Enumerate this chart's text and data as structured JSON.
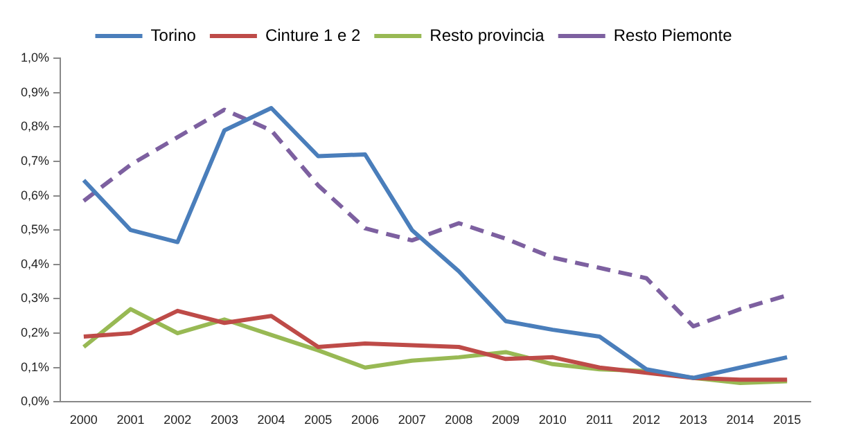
{
  "chart_data": {
    "type": "line",
    "categories": [
      "2000",
      "2001",
      "2002",
      "2003",
      "2004",
      "2005",
      "2006",
      "2007",
      "2008",
      "2009",
      "2010",
      "2011",
      "2012",
      "2013",
      "2014",
      "2015"
    ],
    "series": [
      {
        "name": "Torino",
        "color": "#4a7ebb",
        "values": [
          0.645,
          0.5,
          0.465,
          0.79,
          0.855,
          0.715,
          0.72,
          0.5,
          0.38,
          0.235,
          0.21,
          0.19,
          0.095,
          0.07,
          0.1,
          0.13
        ]
      },
      {
        "name": "Cinture 1 e 2",
        "color": "#be4b48",
        "values": [
          0.19,
          0.2,
          0.265,
          0.23,
          0.25,
          0.16,
          0.17,
          0.165,
          0.16,
          0.125,
          0.13,
          0.1,
          0.085,
          0.07,
          0.065,
          0.065
        ]
      },
      {
        "name": "Resto provincia",
        "color": "#98b954",
        "values": [
          0.16,
          0.27,
          0.2,
          0.24,
          0.195,
          0.15,
          0.1,
          0.12,
          0.13,
          0.145,
          0.11,
          0.095,
          0.09,
          0.07,
          0.055,
          0.06
        ]
      },
      {
        "name": "Resto Piemonte",
        "color": "#7d60a0",
        "line_style": "dashed",
        "values": [
          0.585,
          0.69,
          0.77,
          0.85,
          0.79,
          0.63,
          0.505,
          0.47,
          0.52,
          0.475,
          0.42,
          0.39,
          0.36,
          0.22,
          0.27,
          0.31
        ]
      }
    ],
    "ylim": [
      0,
      1
    ],
    "yticks": [
      {
        "value": 0,
        "label": "0,0%"
      },
      {
        "value": 0.1,
        "label": "0,1%"
      },
      {
        "value": 0.2,
        "label": "0,2%"
      },
      {
        "value": 0.3,
        "label": "0,3%"
      },
      {
        "value": 0.4,
        "label": "0,4%"
      },
      {
        "value": 0.5,
        "label": "0,5%"
      },
      {
        "value": 0.6,
        "label": "0,6%"
      },
      {
        "value": 0.7,
        "label": "0,7%"
      },
      {
        "value": 0.8,
        "label": "0,8%"
      },
      {
        "value": 0.9,
        "label": "0,9%"
      },
      {
        "value": 1,
        "label": "1,0%"
      }
    ],
    "grid": false,
    "legend": "top",
    "marker": "none",
    "line_style": "solid"
  }
}
